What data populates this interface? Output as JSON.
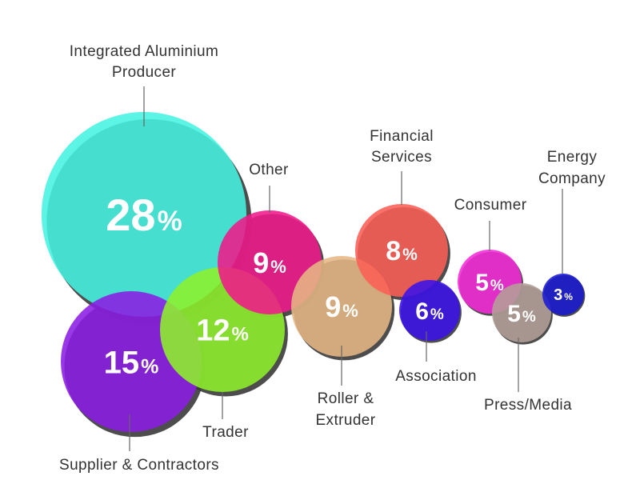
{
  "chart_data": {
    "type": "bubble",
    "title": "",
    "unit": "%",
    "series": [
      {
        "label": "Integrated Aluminium\nProducer",
        "value": 28,
        "color": "#44F2E1"
      },
      {
        "label": "Supplier & Contractors",
        "value": 15,
        "color": "#8B1CE4"
      },
      {
        "label": "Trader",
        "value": 12,
        "color": "#8EF12B"
      },
      {
        "label": "Other",
        "value": 9,
        "color": "#F0198A"
      },
      {
        "label": "Roller &\nExtruder",
        "value": 9,
        "color": "#E6B784"
      },
      {
        "label": "Financial\nServices",
        "value": 8,
        "color": "#FA5E55"
      },
      {
        "label": "Association",
        "value": 6,
        "color": "#3B12E9"
      },
      {
        "label": "Consumer",
        "value": 5,
        "color": "#F52BD8"
      },
      {
        "label": "Press/Media",
        "value": 5,
        "color": "#B4A199"
      },
      {
        "label": "Energy\nCompany",
        "value": 3,
        "color": "#1A1AD2"
      }
    ]
  }
}
